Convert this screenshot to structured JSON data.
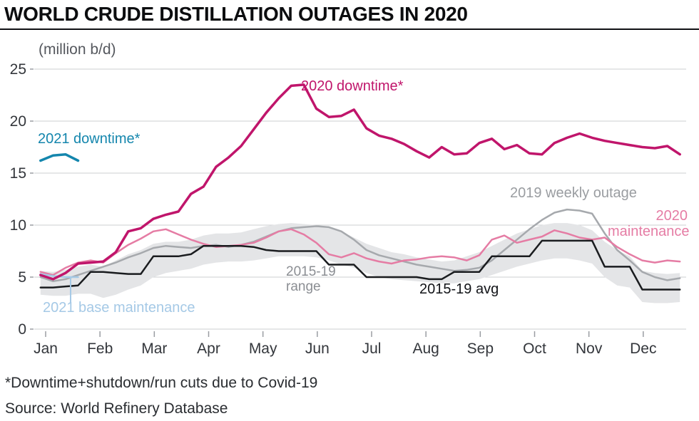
{
  "footer": {
    "footnote": "*Downtime+shutdown/run cuts due to Covid-19",
    "source": "Source: World Refinery Database"
  },
  "chart_data": {
    "type": "line",
    "title": "WORLD CRUDE DISTILLATION OUTAGES IN 2020",
    "unit_label": "(million b/d)",
    "weeks_per_year": 52,
    "style": {
      "grid": "#cdcfd2",
      "axis": "#9a9da2",
      "background": "#ffffff"
    },
    "x_axis": {
      "categories": [
        "Jan",
        "Feb",
        "Mar",
        "Apr",
        "May",
        "Jun",
        "Jul",
        "Aug",
        "Sep",
        "Oct",
        "Nov",
        "Dec"
      ]
    },
    "y_axis": {
      "ticks": [
        0,
        5,
        10,
        15,
        20,
        25
      ],
      "range": [
        0,
        25
      ]
    },
    "band": {
      "name": "2015-19 range",
      "color": "#e4e5e7",
      "lower": [
        3.3,
        3.2,
        3.2,
        3.4,
        3.4,
        3.0,
        3.3,
        3.8,
        4.2,
        5.0,
        5.4,
        5.6,
        5.8,
        6.2,
        6.4,
        6.5,
        6.5,
        6.6,
        6.8,
        7.0,
        7.0,
        7.0,
        6.9,
        6.6,
        6.2,
        5.9,
        5.4,
        5.0,
        4.8,
        4.7,
        4.6,
        4.5,
        4.4,
        4.4,
        4.6,
        4.8,
        5.2,
        5.6,
        6.0,
        6.3,
        6.6,
        6.8,
        6.8,
        6.6,
        6.3,
        5.0,
        4.2,
        4.0,
        2.6,
        2.5,
        2.5,
        2.6
      ],
      "upper": [
        5.6,
        5.5,
        5.7,
        6.0,
        6.2,
        6.0,
        6.6,
        7.2,
        7.6,
        8.2,
        8.4,
        8.4,
        8.6,
        9.0,
        9.2,
        9.2,
        9.3,
        9.6,
        9.9,
        10.1,
        10.2,
        10.1,
        10.0,
        9.8,
        9.4,
        8.8,
        8.2,
        7.8,
        7.4,
        7.2,
        6.9,
        6.7,
        6.5,
        6.6,
        7.0,
        7.4,
        8.0,
        8.6,
        9.2,
        9.6,
        10.0,
        10.2,
        10.2,
        10.0,
        9.5,
        8.4,
        7.6,
        7.0,
        5.6,
        5.4,
        5.3,
        5.4
      ]
    },
    "series": [
      {
        "name": "2019 weekly outage",
        "color": "#a6a9ad",
        "width": 2.5,
        "values": [
          5.0,
          4.6,
          4.8,
          5.2,
          5.6,
          6.0,
          6.4,
          6.9,
          7.3,
          7.8,
          8.0,
          7.9,
          7.8,
          8.0,
          8.1,
          7.9,
          8.1,
          8.4,
          8.9,
          9.4,
          9.7,
          9.8,
          9.9,
          9.8,
          9.4,
          8.6,
          7.6,
          7.1,
          6.8,
          6.5,
          6.2,
          6.0,
          5.8,
          5.6,
          5.7,
          5.9,
          6.6,
          7.6,
          8.6,
          9.6,
          10.5,
          11.2,
          11.5,
          11.4,
          11.1,
          9.2,
          7.6,
          6.6,
          5.5,
          5.0,
          4.7,
          4.9
        ]
      },
      {
        "name": "2020 maintenance",
        "color": "#e57ca4",
        "width": 2.5,
        "values": [
          5.5,
          5.2,
          5.9,
          6.4,
          6.6,
          6.4,
          7.3,
          8.1,
          8.7,
          9.4,
          9.6,
          9.1,
          8.6,
          8.2,
          7.9,
          8.0,
          8.1,
          8.3,
          8.8,
          9.4,
          9.6,
          9.1,
          8.3,
          7.2,
          6.9,
          7.3,
          6.8,
          6.5,
          6.3,
          6.6,
          6.7,
          6.9,
          7.0,
          6.9,
          6.6,
          7.1,
          8.6,
          9.0,
          8.3,
          8.6,
          8.9,
          9.5,
          9.2,
          8.8,
          8.6,
          8.8,
          7.9,
          7.2,
          6.6,
          6.4,
          6.6,
          6.5
        ]
      },
      {
        "name": "2015-19 avg",
        "color": "#1a1c1f",
        "width": 2.5,
        "values": [
          4.0,
          4.0,
          4.1,
          4.2,
          5.5,
          5.5,
          5.4,
          5.3,
          5.3,
          7.0,
          7.0,
          7.0,
          7.2,
          8.0,
          8.0,
          8.0,
          8.0,
          7.9,
          7.6,
          7.5,
          7.5,
          7.5,
          7.5,
          6.2,
          6.2,
          6.2,
          5.0,
          5.0,
          5.0,
          5.0,
          5.0,
          4.8,
          4.8,
          5.5,
          5.5,
          5.5,
          7.0,
          7.0,
          7.0,
          7.0,
          8.5,
          8.5,
          8.5,
          8.5,
          8.5,
          6.0,
          6.0,
          6.0,
          3.8,
          3.8,
          3.8,
          3.8
        ]
      },
      {
        "name": "2021 base maintenance",
        "color": "#a5c9e6",
        "width": 2.5,
        "x_weeks": [
          1,
          2,
          3,
          4
        ],
        "values": [
          5.3,
          5.1,
          5.0,
          5.0
        ],
        "leader": {
          "x_week": 3.4,
          "y_from": 5.0,
          "y_to": 2.45
        }
      },
      {
        "name": "2021 downtime*",
        "color": "#1486ad",
        "width": 3.5,
        "x_weeks": [
          1,
          2,
          3,
          4
        ],
        "values": [
          16.2,
          16.7,
          16.8,
          16.2
        ]
      },
      {
        "name": "2020 downtime*",
        "color": "#c0156b",
        "width": 3.5,
        "values": [
          5.2,
          4.8,
          5.4,
          6.3,
          6.4,
          6.5,
          7.4,
          9.4,
          9.7,
          10.6,
          11.0,
          11.3,
          13.0,
          13.7,
          15.6,
          16.5,
          17.6,
          19.2,
          20.8,
          22.2,
          23.4,
          23.5,
          21.2,
          20.4,
          20.5,
          21.1,
          19.3,
          18.6,
          18.3,
          17.8,
          17.1,
          16.5,
          17.5,
          16.8,
          16.9,
          17.9,
          18.3,
          17.3,
          17.7,
          16.9,
          16.8,
          17.9,
          18.4,
          18.8,
          18.4,
          18.1,
          17.9,
          17.7,
          17.5,
          17.4,
          17.6,
          16.8
        ]
      }
    ],
    "annotations": {
      "downtime2021": {
        "text": "2021 downtime*",
        "color": "#1486ad"
      },
      "downtime2020": {
        "text": "2020 downtime*",
        "color": "#c0156b"
      },
      "weekly2019": {
        "text": "2019 weekly outage",
        "color": "#9a9da1"
      },
      "maintenance2020": {
        "text": "2020 maintenance",
        "color": "#e57ca4"
      },
      "range": {
        "text": "2015-19 range",
        "color": "#8b8e93"
      },
      "avg": {
        "text": "2015-19 avg",
        "color": "#121418"
      },
      "base2021": {
        "text": "2021 base maintenance",
        "color": "#a5c9e6"
      }
    }
  }
}
